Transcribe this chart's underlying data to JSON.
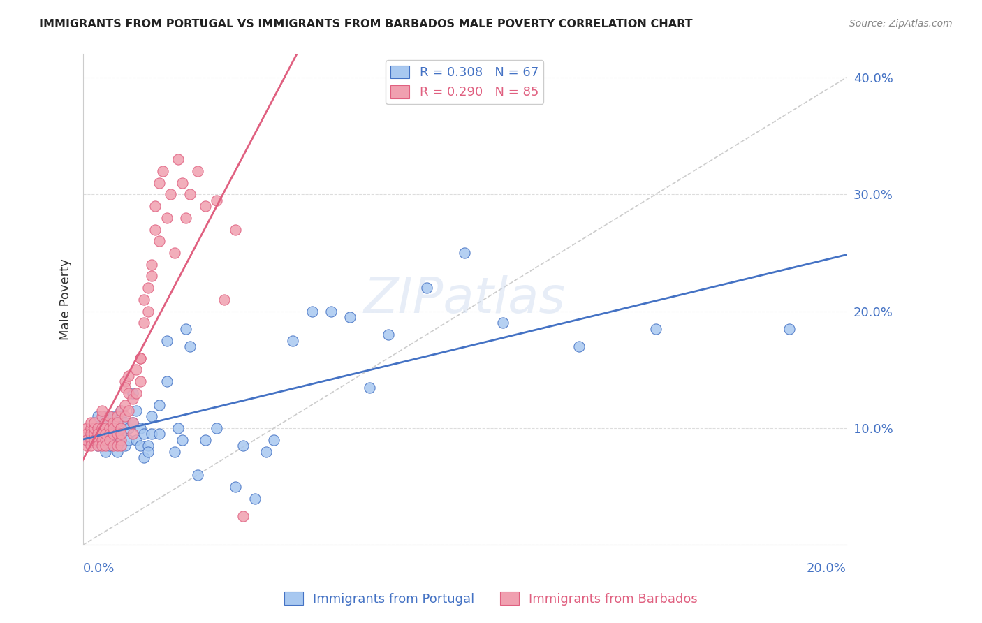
{
  "title": "IMMIGRANTS FROM PORTUGAL VS IMMIGRANTS FROM BARBADOS MALE POVERTY CORRELATION CHART",
  "source": "Source: ZipAtlas.com",
  "ylabel": "Male Poverty",
  "yticks": [
    0.0,
    0.1,
    0.2,
    0.3,
    0.4
  ],
  "xlim": [
    0.0,
    0.2
  ],
  "ylim": [
    0.0,
    0.42
  ],
  "portugal_R": 0.308,
  "portugal_N": 67,
  "barbados_R": 0.29,
  "barbados_N": 85,
  "portugal_color": "#a8c8f0",
  "barbados_color": "#f0a0b0",
  "portugal_line_color": "#4472c4",
  "barbados_line_color": "#e06080",
  "diagonal_color": "#cccccc",
  "text_color": "#4472c4",
  "background_color": "#ffffff",
  "grid_color": "#dddddd",
  "watermark": "ZIPatlas",
  "portugal_x": [
    0.001,
    0.002,
    0.003,
    0.003,
    0.004,
    0.004,
    0.005,
    0.005,
    0.005,
    0.006,
    0.006,
    0.007,
    0.007,
    0.007,
    0.008,
    0.008,
    0.009,
    0.009,
    0.01,
    0.01,
    0.01,
    0.01,
    0.011,
    0.011,
    0.012,
    0.012,
    0.013,
    0.013,
    0.014,
    0.014,
    0.015,
    0.015,
    0.016,
    0.016,
    0.017,
    0.017,
    0.018,
    0.018,
    0.02,
    0.02,
    0.022,
    0.022,
    0.024,
    0.025,
    0.026,
    0.027,
    0.028,
    0.03,
    0.032,
    0.035,
    0.04,
    0.042,
    0.045,
    0.048,
    0.05,
    0.055,
    0.06,
    0.065,
    0.07,
    0.075,
    0.08,
    0.09,
    0.1,
    0.11,
    0.13,
    0.15,
    0.185
  ],
  "portugal_y": [
    0.09,
    0.095,
    0.1,
    0.1,
    0.11,
    0.085,
    0.1,
    0.09,
    0.1,
    0.08,
    0.11,
    0.085,
    0.095,
    0.09,
    0.1,
    0.11,
    0.08,
    0.09,
    0.115,
    0.09,
    0.095,
    0.11,
    0.105,
    0.085,
    0.09,
    0.1,
    0.105,
    0.13,
    0.115,
    0.09,
    0.1,
    0.085,
    0.075,
    0.095,
    0.085,
    0.08,
    0.11,
    0.095,
    0.12,
    0.095,
    0.14,
    0.175,
    0.08,
    0.1,
    0.09,
    0.185,
    0.17,
    0.06,
    0.09,
    0.1,
    0.05,
    0.085,
    0.04,
    0.08,
    0.09,
    0.175,
    0.2,
    0.2,
    0.195,
    0.135,
    0.18,
    0.22,
    0.25,
    0.19,
    0.17,
    0.185,
    0.185
  ],
  "barbados_x": [
    0.001,
    0.001,
    0.001,
    0.001,
    0.002,
    0.002,
    0.002,
    0.002,
    0.002,
    0.003,
    0.003,
    0.003,
    0.003,
    0.003,
    0.004,
    0.004,
    0.004,
    0.004,
    0.005,
    0.005,
    0.005,
    0.005,
    0.005,
    0.005,
    0.006,
    0.006,
    0.006,
    0.006,
    0.006,
    0.007,
    0.007,
    0.007,
    0.007,
    0.008,
    0.008,
    0.008,
    0.008,
    0.009,
    0.009,
    0.009,
    0.009,
    0.01,
    0.01,
    0.01,
    0.01,
    0.01,
    0.011,
    0.011,
    0.011,
    0.011,
    0.012,
    0.012,
    0.012,
    0.013,
    0.013,
    0.013,
    0.014,
    0.014,
    0.015,
    0.015,
    0.015,
    0.016,
    0.016,
    0.017,
    0.017,
    0.018,
    0.018,
    0.019,
    0.019,
    0.02,
    0.02,
    0.021,
    0.022,
    0.023,
    0.024,
    0.025,
    0.026,
    0.027,
    0.028,
    0.03,
    0.032,
    0.035,
    0.037,
    0.04,
    0.042
  ],
  "barbados_y": [
    0.1,
    0.095,
    0.085,
    0.09,
    0.1,
    0.105,
    0.09,
    0.085,
    0.095,
    0.1,
    0.095,
    0.09,
    0.1,
    0.105,
    0.09,
    0.1,
    0.095,
    0.085,
    0.1,
    0.095,
    0.11,
    0.115,
    0.09,
    0.085,
    0.105,
    0.1,
    0.09,
    0.085,
    0.095,
    0.1,
    0.095,
    0.11,
    0.09,
    0.105,
    0.095,
    0.085,
    0.1,
    0.11,
    0.105,
    0.095,
    0.085,
    0.1,
    0.115,
    0.09,
    0.085,
    0.095,
    0.14,
    0.135,
    0.12,
    0.11,
    0.13,
    0.115,
    0.145,
    0.125,
    0.105,
    0.095,
    0.15,
    0.13,
    0.16,
    0.14,
    0.16,
    0.21,
    0.19,
    0.22,
    0.2,
    0.24,
    0.23,
    0.27,
    0.29,
    0.31,
    0.26,
    0.32,
    0.28,
    0.3,
    0.25,
    0.33,
    0.31,
    0.28,
    0.3,
    0.32,
    0.29,
    0.295,
    0.21,
    0.27,
    0.025
  ]
}
